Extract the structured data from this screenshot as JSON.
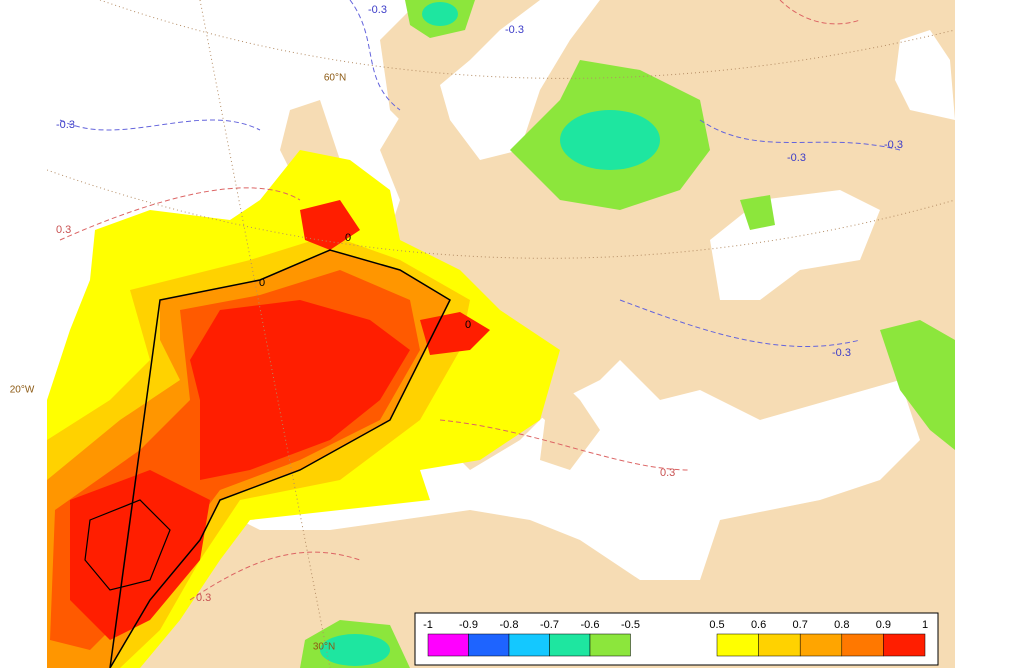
{
  "map": {
    "graticule_labels": [
      "60°N",
      "20°W",
      "30°N"
    ],
    "contour_labels": [
      "-0.3",
      "-0.3",
      "-0.3",
      "-0.3",
      "-0.3",
      "-0.3",
      "0.3",
      "0.3",
      "0.3",
      "0",
      "0",
      "0"
    ],
    "colorbar": {
      "negative": {
        "ticks": [
          -1,
          -0.9,
          -0.8,
          -0.7,
          -0.6,
          -0.5
        ],
        "colors": [
          "#ff00ff",
          "#1e64ff",
          "#14c8ff",
          "#1ee6a0",
          "#8ce63c"
        ]
      },
      "positive": {
        "ticks": [
          0.5,
          0.6,
          0.7,
          0.8,
          0.9,
          1
        ],
        "colors": [
          "#ffff00",
          "#ffd200",
          "#ffa500",
          "#ff7800",
          "#ff1e00"
        ]
      }
    }
  }
}
